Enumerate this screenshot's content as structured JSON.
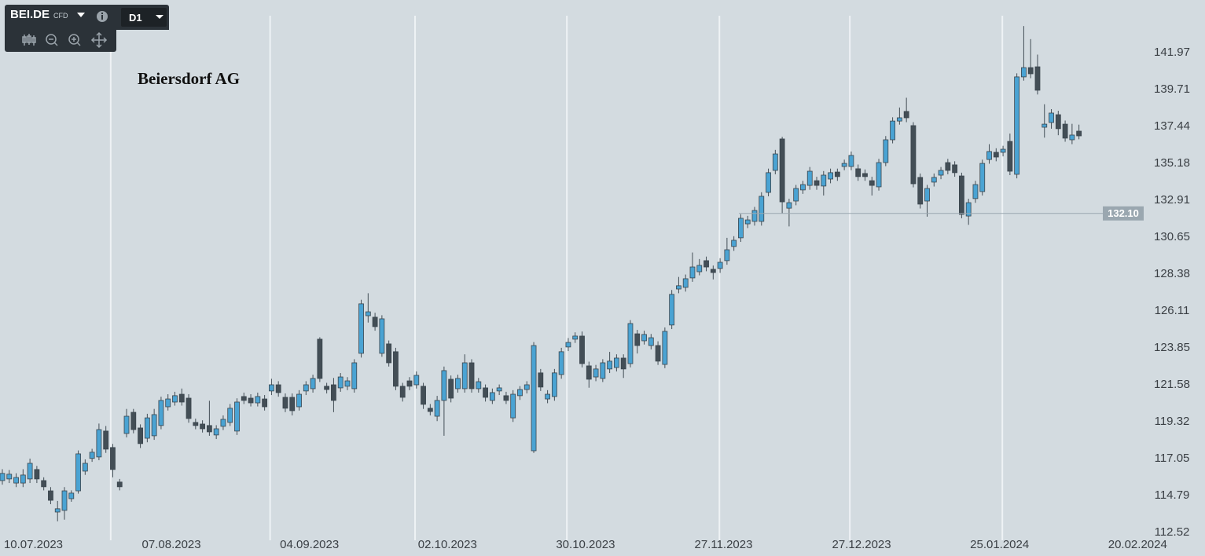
{
  "toolbar": {
    "symbol": "BEI.DE",
    "market": "CFD",
    "timeframe": "D1"
  },
  "chart_data": {
    "type": "candlestick",
    "title": "Beiersdorf AG",
    "up_color": "#4aa3d3",
    "down_color": "#434e56",
    "open": [
      115.7,
      115.8,
      115.55,
      115.55,
      115.8,
      116.38,
      115.7,
      115.07,
      113.77,
      113.87,
      114.59,
      115.07,
      116.28,
      117.06,
      117.15,
      118.74,
      117.73,
      115.61,
      118.59,
      119.89,
      118.93,
      118.3,
      118.45,
      119.08,
      120.23,
      120.52,
      121.0,
      120.76,
      119.27,
      119.17,
      119.08,
      118.5,
      119.03,
      119.27,
      118.74,
      120.86,
      120.76,
      120.47,
      120.71,
      121.2,
      121.58,
      120.81,
      120.81,
      120.23,
      121.2,
      121.34,
      124.38,
      121.49,
      121.58,
      121.39,
      121.49,
      121.34,
      123.51,
      125.82,
      125.73,
      123.51,
      124.09,
      123.61,
      121.49,
      121.82,
      121.58,
      121.49,
      120.14,
      119.65,
      120.62,
      121.92,
      121.34,
      121.34,
      122.93,
      121.34,
      121.39,
      120.62,
      121.2,
      120.91,
      119.55,
      120.91,
      121.29,
      117.53,
      122.31,
      120.71,
      120.86,
      122.21,
      123.9,
      124.38,
      124.57,
      122.74,
      122.06,
      121.97,
      122.55,
      122.64,
      123.22,
      122.88,
      124.71,
      124.28,
      123.99,
      123.99,
      122.83,
      125.25,
      127.46,
      127.56,
      128.14,
      128.52,
      129.2,
      128.67,
      128.72,
      129.2,
      130.07,
      130.6,
      131.46,
      131.61,
      131.61,
      133.39,
      134.74,
      136.67,
      132.42,
      132.86,
      133.54,
      133.82,
      134.11,
      133.78,
      134.21,
      134.64,
      134.98,
      134.98,
      134.84,
      134.55,
      134.11,
      133.73,
      135.22,
      136.62,
      137.77,
      138.36,
      137.49,
      134.31,
      132.86,
      134.02,
      134.45,
      135.22,
      135.08,
      134.4,
      131.94,
      133.01,
      133.44,
      135.41,
      135.85,
      135.85,
      136.52,
      134.5,
      140.48,
      141.05,
      141.1,
      137.39,
      137.68,
      138.16,
      137.58,
      136.62,
      137.15
    ],
    "high": [
      116.4,
      116.35,
      116.15,
      116.4,
      117.05,
      116.6,
      115.9,
      115.3,
      114.45,
      115.3,
      115.1,
      117.55,
      117.0,
      117.65,
      119.2,
      119.05,
      117.95,
      115.8,
      120.1,
      120.1,
      119.15,
      119.8,
      120.1,
      120.85,
      121.0,
      121.15,
      121.35,
      121.0,
      119.5,
      119.4,
      120.6,
      119.1,
      119.7,
      120.4,
      120.75,
      121.1,
      121.0,
      121.1,
      120.95,
      121.95,
      121.8,
      121.05,
      121.05,
      121.25,
      121.8,
      122.2,
      124.5,
      121.7,
      122.0,
      122.3,
      122.05,
      123.15,
      126.8,
      127.2,
      126.0,
      125.85,
      124.3,
      123.85,
      121.7,
      122.05,
      122.4,
      121.7,
      120.4,
      120.9,
      122.7,
      122.15,
      122.2,
      123.45,
      123.15,
      122.0,
      121.6,
      121.35,
      121.6,
      121.15,
      121.25,
      121.5,
      121.8,
      124.2,
      122.55,
      121.25,
      122.55,
      123.85,
      124.45,
      124.8,
      124.85,
      123.0,
      122.8,
      123.15,
      123.6,
      123.45,
      123.45,
      125.55,
      124.95,
      124.9,
      124.7,
      124.25,
      125.1,
      127.4,
      128.2,
      128.35,
      129.7,
      129.3,
      129.45,
      128.9,
      129.35,
      130.6,
      130.7,
      132.05,
      131.95,
      132.5,
      133.4,
      134.85,
      136.0,
      136.8,
      133.0,
      133.85,
      134.1,
      134.95,
      134.35,
      134.7,
      134.85,
      134.85,
      135.4,
      135.9,
      135.1,
      134.8,
      134.35,
      135.45,
      136.85,
      138.0,
      138.6,
      139.2,
      137.7,
      134.55,
      133.85,
      134.55,
      134.95,
      135.45,
      135.3,
      134.6,
      133.0,
      134.1,
      135.4,
      136.35,
      136.1,
      136.25,
      137.0,
      140.7,
      143.6,
      142.8,
      141.85,
      138.8,
      138.5,
      138.4,
      137.8,
      137.6,
      137.55
    ],
    "low": [
      115.45,
      115.55,
      115.3,
      115.3,
      115.55,
      115.55,
      115.1,
      114.25,
      113.2,
      113.3,
      114.4,
      114.9,
      116.05,
      116.85,
      116.95,
      117.4,
      115.9,
      115.1,
      118.35,
      118.6,
      117.7,
      118.05,
      118.2,
      118.85,
      120.0,
      120.3,
      120.3,
      119.25,
      118.85,
      118.65,
      118.45,
      118.25,
      118.8,
      119.05,
      118.5,
      120.4,
      120.25,
      120.25,
      120.0,
      120.95,
      120.85,
      119.9,
      119.7,
      120.0,
      120.95,
      121.1,
      121.75,
      121.05,
      119.9,
      121.15,
      121.25,
      121.1,
      123.25,
      125.4,
      124.9,
      123.3,
      122.7,
      121.25,
      120.55,
      121.25,
      121.35,
      120.1,
      119.7,
      119.35,
      118.45,
      120.5,
      121.1,
      121.1,
      121.1,
      121.1,
      120.55,
      120.4,
      120.95,
      120.4,
      119.3,
      120.65,
      121.05,
      117.4,
      121.2,
      120.45,
      120.6,
      121.95,
      123.65,
      124.15,
      122.65,
      121.4,
      121.8,
      121.75,
      122.3,
      122.4,
      122.0,
      122.65,
      123.5,
      124.05,
      123.75,
      122.8,
      122.6,
      125.0,
      127.2,
      127.3,
      127.9,
      128.3,
      128.55,
      128.05,
      128.45,
      128.95,
      129.8,
      130.35,
      131.2,
      131.35,
      131.35,
      133.15,
      134.5,
      132.1,
      131.3,
      132.6,
      133.3,
      133.55,
      133.55,
      133.2,
      133.95,
      134.1,
      134.75,
      134.75,
      134.1,
      134.1,
      133.2,
      133.5,
      135.0,
      136.4,
      137.55,
      137.7,
      133.7,
      132.4,
      131.9,
      133.75,
      134.2,
      134.5,
      134.35,
      131.8,
      131.4,
      132.75,
      133.2,
      135.15,
      135.3,
      135.6,
      134.45,
      134.25,
      140.25,
      140.4,
      139.4,
      136.75,
      137.3,
      136.9,
      136.5,
      136.35,
      136.65
    ],
    "close": [
      116.14,
      116.09,
      115.89,
      116.04,
      116.76,
      115.8,
      115.32,
      114.49,
      113.97,
      115.07,
      114.93,
      117.34,
      116.76,
      117.44,
      118.83,
      117.63,
      116.38,
      115.32,
      119.65,
      118.83,
      117.97,
      119.55,
      119.75,
      120.62,
      120.71,
      120.91,
      120.52,
      119.51,
      119.08,
      118.88,
      118.69,
      118.88,
      119.46,
      120.14,
      120.52,
      120.62,
      120.47,
      120.86,
      120.23,
      121.58,
      121.1,
      120.14,
      119.99,
      121.0,
      121.58,
      121.97,
      121.97,
      121.29,
      120.62,
      122.06,
      121.82,
      122.93,
      126.55,
      126.06,
      125.15,
      125.63,
      122.93,
      121.49,
      120.81,
      121.49,
      122.16,
      120.38,
      119.94,
      120.62,
      122.45,
      120.76,
      121.97,
      122.93,
      121.34,
      121.77,
      120.81,
      121.1,
      121.39,
      120.62,
      121.0,
      121.29,
      121.58,
      123.99,
      121.44,
      121.0,
      122.31,
      123.61,
      124.18,
      124.57,
      122.88,
      121.92,
      122.55,
      122.93,
      123.03,
      123.22,
      122.55,
      125.34,
      123.99,
      124.67,
      124.47,
      123.03,
      124.86,
      127.13,
      127.66,
      128.09,
      128.81,
      128.91,
      128.81,
      128.47,
      129.1,
      129.87,
      130.45,
      131.8,
      131.7,
      132.28,
      133.15,
      134.6,
      135.75,
      132.81,
      132.76,
      133.63,
      133.87,
      134.69,
      133.82,
      134.45,
      134.6,
      134.36,
      135.17,
      135.66,
      134.36,
      134.36,
      133.82,
      135.22,
      136.62,
      137.77,
      137.97,
      137.97,
      133.92,
      132.67,
      133.63,
      134.31,
      134.74,
      134.74,
      134.6,
      132.04,
      132.76,
      133.87,
      135.17,
      135.9,
      135.56,
      136.04,
      134.69,
      140.48,
      141.05,
      140.67,
      139.66,
      137.58,
      138.26,
      137.3,
      136.72,
      136.91,
      136.86
    ],
    "xlim": [
      -0.34,
      164.24
    ],
    "xticks": [
      {
        "value": 4.5,
        "label": "10.07.2023"
      },
      {
        "value": 24.5,
        "label": "07.08.2023"
      },
      {
        "value": 44.5,
        "label": "04.09.2023"
      },
      {
        "value": 64.5,
        "label": "02.10.2023"
      },
      {
        "value": 84.5,
        "label": "30.10.2023"
      },
      {
        "value": 104.5,
        "label": "27.11.2023"
      },
      {
        "value": 124.5,
        "label": "27.12.2023"
      },
      {
        "value": 144.5,
        "label": "25.01.2024"
      },
      {
        "value": 164.5,
        "label": "20.02.2024"
      }
    ],
    "xgrid": [
      15.7,
      38.8,
      59.8,
      81.8,
      103.9,
      122.8,
      144.9
    ],
    "ylim": [
      112.42,
      145.2
    ],
    "yticks": [
      112.52,
      114.79,
      117.05,
      119.32,
      121.58,
      123.85,
      126.11,
      128.38,
      130.65,
      132.91,
      135.18,
      137.44,
      139.71,
      141.97
    ],
    "last_price": {
      "value": 132.1,
      "label": "132.10"
    }
  }
}
